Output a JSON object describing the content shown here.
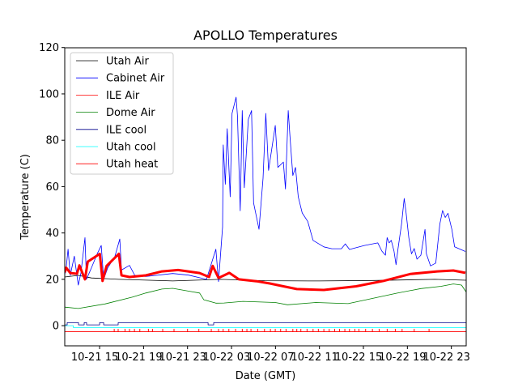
{
  "chart_data": {
    "type": "line",
    "title": "APOLLO Temperatures",
    "xlabel": "Date (GMT)",
    "ylabel": "Temperature (C)",
    "x_unit": "hours since 10-21 00:00 GMT",
    "xlim": [
      11.83,
      48.35
    ],
    "ylim": [
      -8.7,
      119.9
    ],
    "grid": false,
    "legend_position": "top-left",
    "xticks": [
      {
        "value": 15,
        "label": "10-21 15"
      },
      {
        "value": 19,
        "label": "10-21 19"
      },
      {
        "value": 23,
        "label": "10-21 23"
      },
      {
        "value": 27,
        "label": "10-22 03"
      },
      {
        "value": 31,
        "label": "10-22 07"
      },
      {
        "value": 35,
        "label": "10-22 11"
      },
      {
        "value": 39,
        "label": "10-22 15"
      },
      {
        "value": 43,
        "label": "10-22 19"
      },
      {
        "value": 47,
        "label": "10-22 23"
      }
    ],
    "yticks": [
      {
        "value": 0,
        "label": "0"
      },
      {
        "value": 20,
        "label": "20"
      },
      {
        "value": 40,
        "label": "40"
      },
      {
        "value": 60,
        "label": "60"
      },
      {
        "value": 80,
        "label": "80"
      },
      {
        "value": 100,
        "label": "100"
      },
      {
        "value": 120,
        "label": "120"
      }
    ],
    "series": [
      {
        "name": "Utah Air",
        "color": "#000000",
        "width": 0.8,
        "points": [
          [
            11.83,
            21
          ],
          [
            13.06,
            21.7
          ],
          [
            14.26,
            20.6
          ],
          [
            16.75,
            20
          ],
          [
            21.65,
            19.3
          ],
          [
            26.0,
            20
          ],
          [
            30,
            19.4
          ],
          [
            35,
            19.3
          ],
          [
            40,
            19.5
          ],
          [
            45.5,
            20
          ],
          [
            48.35,
            19.6
          ]
        ]
      },
      {
        "name": "Cabinet Air",
        "color": "#0000ff",
        "width": 0.8,
        "points": [
          [
            11.83,
            22
          ],
          [
            11.96,
            25
          ],
          [
            12.13,
            33
          ],
          [
            12.33,
            21.7
          ],
          [
            12.7,
            30
          ],
          [
            13.06,
            17.5
          ],
          [
            13.3,
            22.7
          ],
          [
            13.67,
            38
          ],
          [
            13.8,
            20
          ],
          [
            14.26,
            25
          ],
          [
            14.78,
            31
          ],
          [
            15.15,
            34.6
          ],
          [
            15.37,
            20
          ],
          [
            15.74,
            25
          ],
          [
            16.38,
            29.7
          ],
          [
            16.84,
            37.4
          ],
          [
            16.99,
            24
          ],
          [
            17.72,
            26
          ],
          [
            18.2,
            21.7
          ],
          [
            19.2,
            21.2
          ],
          [
            21.65,
            22.5
          ],
          [
            23.1,
            21.8
          ],
          [
            24.72,
            20
          ],
          [
            25.58,
            33
          ],
          [
            25.82,
            19
          ],
          [
            26.19,
            42.6
          ],
          [
            26.25,
            78
          ],
          [
            26.44,
            61
          ],
          [
            26.61,
            85
          ],
          [
            26.88,
            55.6
          ],
          [
            27.05,
            91.6
          ],
          [
            27.42,
            98.6
          ],
          [
            27.54,
            90.5
          ],
          [
            27.79,
            49.6
          ],
          [
            27.98,
            92.8
          ],
          [
            28.16,
            59.5
          ],
          [
            28.53,
            89
          ],
          [
            28.82,
            92.8
          ],
          [
            29.01,
            53
          ],
          [
            29.5,
            41.6
          ],
          [
            29.87,
            63.6
          ],
          [
            30.12,
            91.6
          ],
          [
            30.37,
            67
          ],
          [
            30.98,
            86.4
          ],
          [
            31.22,
            68.3
          ],
          [
            31.72,
            70.6
          ],
          [
            31.91,
            59
          ],
          [
            32.16,
            92.8
          ],
          [
            32.33,
            81
          ],
          [
            32.58,
            64.8
          ],
          [
            32.82,
            68.3
          ],
          [
            33.07,
            55.6
          ],
          [
            33.43,
            48.6
          ],
          [
            33.93,
            45
          ],
          [
            34.42,
            36.8
          ],
          [
            35.4,
            34
          ],
          [
            36.13,
            33.2
          ],
          [
            37.0,
            33.2
          ],
          [
            37.36,
            35.3
          ],
          [
            37.73,
            32.9
          ],
          [
            39.08,
            34.6
          ],
          [
            40.31,
            35.7
          ],
          [
            40.68,
            32.2
          ],
          [
            41.0,
            30.4
          ],
          [
            41.16,
            38
          ],
          [
            41.34,
            35.7
          ],
          [
            41.53,
            36.8
          ],
          [
            41.78,
            32.2
          ],
          [
            41.97,
            26.3
          ],
          [
            42.15,
            33.3
          ],
          [
            42.47,
            43.8
          ],
          [
            42.71,
            54.9
          ],
          [
            42.89,
            48.5
          ],
          [
            43.13,
            38
          ],
          [
            43.37,
            31
          ],
          [
            43.62,
            33.3
          ],
          [
            43.87,
            28.7
          ],
          [
            44.23,
            30.4
          ],
          [
            44.6,
            41.5
          ],
          [
            44.73,
            31
          ],
          [
            45.1,
            25.8
          ],
          [
            45.58,
            27
          ],
          [
            45.95,
            43.8
          ],
          [
            46.2,
            49.7
          ],
          [
            46.44,
            46.7
          ],
          [
            46.69,
            48.5
          ],
          [
            47.05,
            41.5
          ],
          [
            47.3,
            34
          ],
          [
            48.28,
            32
          ]
        ]
      },
      {
        "name": "ILE Air",
        "color": "#ff0000",
        "width": 3,
        "points": [
          [
            11.83,
            23
          ],
          [
            11.96,
            25
          ],
          [
            12.33,
            22.7
          ],
          [
            12.94,
            22.4
          ],
          [
            13.16,
            26
          ],
          [
            13.67,
            20
          ],
          [
            13.92,
            27.6
          ],
          [
            15.02,
            31
          ],
          [
            15.27,
            19.3
          ],
          [
            15.64,
            25.8
          ],
          [
            16.75,
            31
          ],
          [
            16.99,
            21.7
          ],
          [
            17.72,
            21
          ],
          [
            19.2,
            21.7
          ],
          [
            20.67,
            23.4
          ],
          [
            22.14,
            24
          ],
          [
            24.1,
            22.7
          ],
          [
            24.96,
            21
          ],
          [
            25.29,
            25.8
          ],
          [
            25.82,
            20.6
          ],
          [
            26.32,
            21.7
          ],
          [
            26.8,
            22.8
          ],
          [
            27.67,
            20
          ],
          [
            29.26,
            19.2
          ],
          [
            30.49,
            18.2
          ],
          [
            31.72,
            17
          ],
          [
            32.94,
            15.8
          ],
          [
            35.4,
            15.4
          ],
          [
            38.34,
            17
          ],
          [
            40.8,
            19.3
          ],
          [
            43.26,
            22.3
          ],
          [
            45.71,
            23.4
          ],
          [
            47.18,
            23.8
          ],
          [
            48.28,
            22.8
          ]
        ]
      },
      {
        "name": "Dome Air",
        "color": "#008000",
        "width": 0.8,
        "points": [
          [
            11.83,
            8
          ],
          [
            13.06,
            7.4
          ],
          [
            15.52,
            9.4
          ],
          [
            17.97,
            12.3
          ],
          [
            19.2,
            14.1
          ],
          [
            20.67,
            15.8
          ],
          [
            21.65,
            16.1
          ],
          [
            23.12,
            14.9
          ],
          [
            24.1,
            14.1
          ],
          [
            24.48,
            11.2
          ],
          [
            25.58,
            9.7
          ],
          [
            26.32,
            9.8
          ],
          [
            28.04,
            10.5
          ],
          [
            30.98,
            10
          ],
          [
            32.09,
            9
          ],
          [
            34.66,
            10
          ],
          [
            37.61,
            9.5
          ],
          [
            39.08,
            11
          ],
          [
            42.03,
            14
          ],
          [
            44.23,
            16
          ],
          [
            46.07,
            17
          ],
          [
            47.18,
            18
          ],
          [
            47.92,
            17.5
          ],
          [
            48.35,
            14.5
          ]
        ]
      },
      {
        "name": "ILE cool",
        "color": "#00008b",
        "width": 0.8,
        "step": true,
        "points": [
          [
            11.83,
            0.35
          ],
          [
            12.05,
            1.3
          ],
          [
            13.08,
            0.35
          ],
          [
            13.53,
            0.35
          ],
          [
            13.6,
            1.3
          ],
          [
            13.82,
            0.35
          ],
          [
            15.0,
            1.3
          ],
          [
            15.37,
            0.35
          ],
          [
            16.69,
            1.3
          ],
          [
            24.87,
            0.35
          ],
          [
            25.38,
            1.3
          ],
          [
            48.35,
            1.3
          ]
        ]
      },
      {
        "name": "Utah cool",
        "color": "#00ffff",
        "width": 0.8,
        "step": true,
        "points": [
          [
            11.83,
            0
          ],
          [
            12.6,
            -0.8
          ],
          [
            48.35,
            -0.8
          ]
        ]
      },
      {
        "name": "Utah heat",
        "color": "#ff0000",
        "width": 0.8,
        "baseline": -2.6,
        "on_value": -1.4,
        "events": [
          16.33,
          16.69,
          17.31,
          17.72,
          18.17,
          18.66,
          19.44,
          19.81,
          20.74,
          21.77,
          23.0,
          24.03,
          25.16,
          25.82,
          26.24,
          26.76,
          27.37,
          27.98,
          28.4,
          28.77,
          29.38,
          30.0,
          30.54,
          30.98,
          31.47,
          31.96,
          32.58,
          32.94,
          33.31,
          33.87,
          34.42,
          34.9,
          35.4,
          35.89,
          36.38,
          36.82,
          37.31,
          37.73,
          38.22,
          38.59,
          39.2,
          39.82,
          40.43,
          41.16,
          41.9,
          42.52,
          43.62,
          44.97
        ]
      }
    ]
  }
}
